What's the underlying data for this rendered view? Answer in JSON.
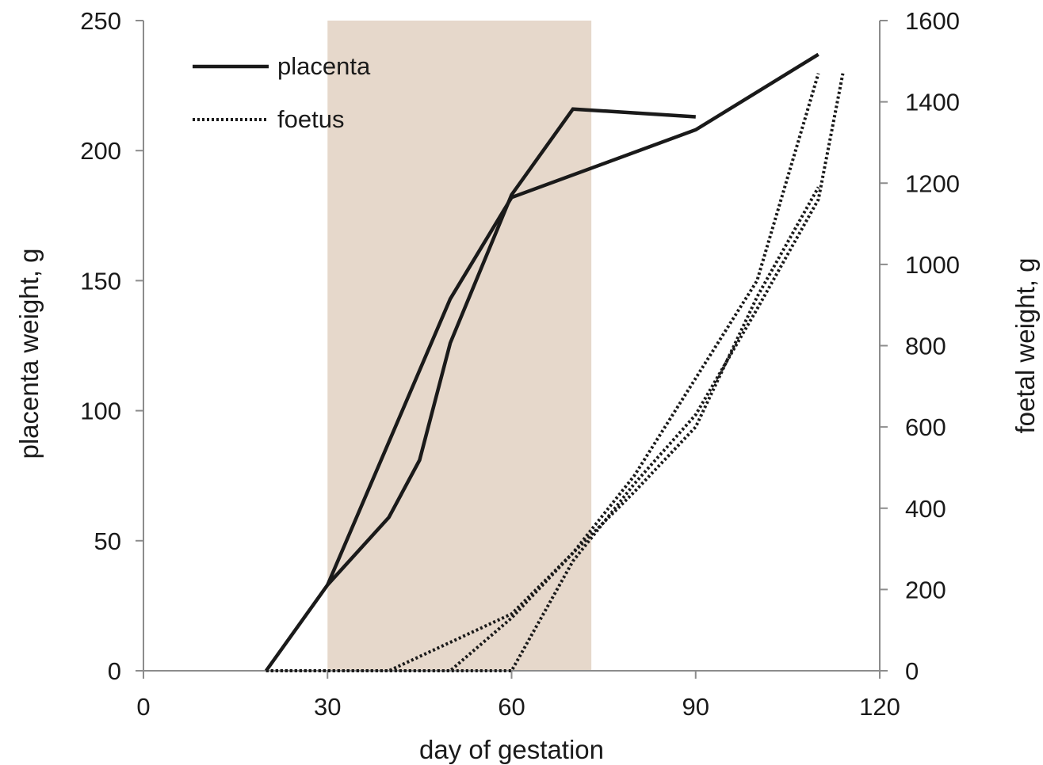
{
  "chart_data": {
    "type": "line",
    "xlabel": "day of gestation",
    "ylabel": "placenta weight, g",
    "y2label": "foetal weight, g",
    "xlim": [
      0,
      120
    ],
    "ylim": [
      0,
      250
    ],
    "y2lim": [
      0,
      1600
    ],
    "x_ticks": [
      0,
      30,
      60,
      90,
      120
    ],
    "y_ticks": [
      0,
      50,
      100,
      150,
      200,
      250
    ],
    "y2_ticks": [
      0,
      200,
      400,
      600,
      800,
      1000,
      1200,
      1400,
      1600
    ],
    "grid": false,
    "legend_position": "top-left",
    "shaded_region": {
      "x_start": 30,
      "x_end": 73,
      "color": "#e6d8cb"
    },
    "legend": [
      {
        "label": "placenta",
        "style": "solid"
      },
      {
        "label": "foetus",
        "style": "dotted"
      }
    ],
    "series": [
      {
        "group": "placenta",
        "axis": "left",
        "style": "solid",
        "x": [
          20,
          30,
          40,
          45,
          50,
          60,
          70,
          90
        ],
        "y": [
          0,
          33,
          59,
          81,
          126,
          183,
          216,
          213
        ]
      },
      {
        "group": "placenta",
        "axis": "left",
        "style": "solid",
        "x": [
          30,
          50,
          60,
          90,
          110
        ],
        "y": [
          33,
          143,
          182,
          208,
          237
        ]
      },
      {
        "group": "foetus",
        "axis": "right",
        "style": "dotted",
        "x": [
          20,
          40,
          50,
          60,
          70,
          80,
          90,
          100,
          110
        ],
        "y": [
          0,
          0,
          70,
          140,
          290,
          480,
          720,
          960,
          1470
        ]
      },
      {
        "group": "foetus",
        "axis": "right",
        "style": "dotted",
        "x": [
          20,
          50,
          60,
          70,
          80,
          90,
          100,
          110
        ],
        "y": [
          0,
          0,
          130,
          290,
          440,
          600,
          920,
          1190
        ]
      },
      {
        "group": "foetus",
        "axis": "right",
        "style": "dotted",
        "x": [
          20,
          60,
          70,
          80,
          90,
          100,
          110,
          114
        ],
        "y": [
          0,
          0,
          270,
          460,
          630,
          890,
          1160,
          1470
        ]
      }
    ],
    "colors": {
      "line": "#1a1a1a",
      "axis": "#8c8c8c",
      "shade": "#e6d8cb"
    }
  }
}
